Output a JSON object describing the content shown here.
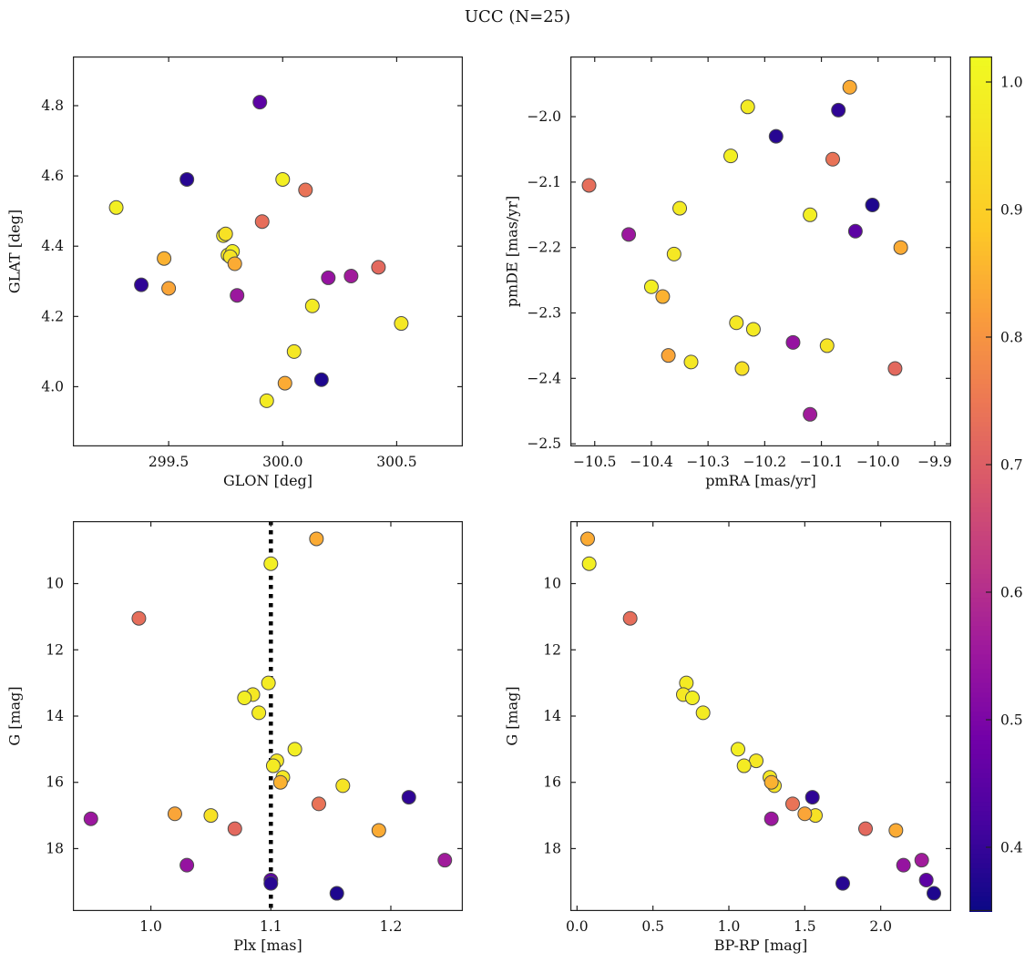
{
  "chart_data": {
    "type": "scatter",
    "title": "UCC (N=25)",
    "n_points": 25,
    "colormap": "plasma",
    "color_key": "prob",
    "marker": {
      "radius": 7.5,
      "edge_color": "#4d4d4d"
    },
    "colorbar": {
      "vmin": 0.35,
      "vmax": 1.02,
      "ticks": [
        0.4,
        0.5,
        0.6,
        0.7,
        0.8,
        0.9,
        1.0
      ]
    },
    "panels": [
      {
        "x_key": "glon",
        "y_key": "glat",
        "xlabel": "GLON [deg]",
        "ylabel": "GLAT [deg]",
        "xlim": [
          299.08,
          300.79
        ],
        "ylim": [
          3.83,
          4.94
        ],
        "invert_y": false,
        "xticks": [
          299.5,
          300.0,
          300.5
        ],
        "yticks": [
          4.0,
          4.2,
          4.4,
          4.6,
          4.8
        ],
        "x_decimals": 1,
        "y_decimals": 1
      },
      {
        "x_key": "pmra",
        "y_key": "pmde",
        "xlabel": "pmRA [mas/yr]",
        "ylabel": "pmDE [mas/yr]",
        "xlim": [
          -10.543,
          -9.871
        ],
        "ylim": [
          -2.504,
          -1.908
        ],
        "invert_y": false,
        "xticks": [
          -10.5,
          -10.4,
          -10.3,
          -10.2,
          -10.1,
          -10.0,
          -9.9
        ],
        "yticks": [
          -2.5,
          -2.4,
          -2.3,
          -2.2,
          -2.1,
          -2.0
        ],
        "x_decimals": 1,
        "y_decimals": 1
      },
      {
        "x_key": "plx",
        "y_key": "g",
        "xlabel": "Plx [mas]",
        "ylabel": "G [mag]",
        "xlim": [
          0.935,
          1.26
        ],
        "ylim": [
          8.115,
          19.885
        ],
        "invert_y": true,
        "xticks": [
          1.0,
          1.1,
          1.2
        ],
        "yticks": [
          10,
          12,
          14,
          16,
          18
        ],
        "x_decimals": 1,
        "y_decimals": 0,
        "vline": {
          "x": 1.1,
          "style": "dotted",
          "color": "#000000",
          "width": 4.5
        }
      },
      {
        "x_key": "bprp",
        "y_key": "g",
        "xlabel": "BP-RP [mag]",
        "ylabel": "G [mag]",
        "xlim": [
          -0.044,
          2.464
        ],
        "ylim": [
          8.115,
          19.885
        ],
        "invert_y": true,
        "xticks": [
          0.0,
          0.5,
          1.0,
          1.5,
          2.0
        ],
        "yticks": [
          10,
          12,
          14,
          16,
          18
        ],
        "x_decimals": 1,
        "y_decimals": 0
      }
    ],
    "stars": [
      {
        "glon": 299.27,
        "glat": 4.51,
        "pmra": -10.26,
        "pmde": -2.06,
        "plx": 1.1,
        "g": 9.4,
        "bprp": 0.08,
        "prob": 0.99
      },
      {
        "glon": 299.74,
        "glat": 4.43,
        "pmra": -10.35,
        "pmde": -2.14,
        "plx": 1.098,
        "g": 13.0,
        "bprp": 0.72,
        "prob": 0.98
      },
      {
        "glon": 299.76,
        "glat": 4.375,
        "pmra": -10.36,
        "pmde": -2.21,
        "plx": 1.085,
        "g": 13.35,
        "bprp": 0.7,
        "prob": 0.97
      },
      {
        "glon": 299.78,
        "glat": 4.385,
        "pmra": -10.4,
        "pmde": -2.26,
        "plx": 1.078,
        "g": 13.45,
        "bprp": 0.76,
        "prob": 0.99
      },
      {
        "glon": 299.93,
        "glat": 3.96,
        "pmra": -10.23,
        "pmde": -1.985,
        "plx": 1.09,
        "g": 13.9,
        "bprp": 0.83,
        "prob": 0.98
      },
      {
        "glon": 300.0,
        "glat": 4.59,
        "pmra": -10.12,
        "pmde": -2.15,
        "plx": 1.12,
        "g": 15.0,
        "bprp": 1.06,
        "prob": 0.99
      },
      {
        "glon": 300.05,
        "glat": 4.1,
        "pmra": -10.25,
        "pmde": -2.315,
        "plx": 1.105,
        "g": 15.35,
        "bprp": 1.18,
        "prob": 0.97
      },
      {
        "glon": 300.13,
        "glat": 4.23,
        "pmra": -10.22,
        "pmde": -2.325,
        "plx": 1.102,
        "g": 15.5,
        "bprp": 1.1,
        "prob": 0.98
      },
      {
        "glon": 300.52,
        "glat": 4.18,
        "pmra": -10.33,
        "pmde": -2.375,
        "plx": 1.11,
        "g": 15.85,
        "bprp": 1.27,
        "prob": 0.97
      },
      {
        "glon": 299.77,
        "glat": 4.37,
        "pmra": -10.09,
        "pmde": -2.35,
        "plx": 1.16,
        "g": 16.1,
        "bprp": 1.3,
        "prob": 0.96
      },
      {
        "glon": 299.75,
        "glat": 4.435,
        "pmra": -10.24,
        "pmde": -2.385,
        "plx": 1.05,
        "g": 17.0,
        "bprp": 1.57,
        "prob": 0.95
      },
      {
        "glon": 300.01,
        "glat": 4.01,
        "pmra": -10.05,
        "pmde": -1.955,
        "plx": 1.138,
        "g": 8.65,
        "bprp": 0.07,
        "prob": 0.84
      },
      {
        "glon": 299.48,
        "glat": 4.365,
        "pmra": -10.38,
        "pmde": -2.275,
        "plx": 1.108,
        "g": 16.0,
        "bprp": 1.28,
        "prob": 0.85
      },
      {
        "glon": 299.5,
        "glat": 4.28,
        "pmra": -10.37,
        "pmde": -2.365,
        "plx": 1.02,
        "g": 16.95,
        "bprp": 1.5,
        "prob": 0.83
      },
      {
        "glon": 299.79,
        "glat": 4.35,
        "pmra": -9.96,
        "pmde": -2.2,
        "plx": 1.19,
        "g": 17.45,
        "bprp": 2.1,
        "prob": 0.84
      },
      {
        "glon": 299.91,
        "glat": 4.47,
        "pmra": -10.51,
        "pmde": -2.105,
        "plx": 0.99,
        "g": 11.05,
        "bprp": 0.35,
        "prob": 0.73
      },
      {
        "glon": 300.1,
        "glat": 4.56,
        "pmra": -10.08,
        "pmde": -2.065,
        "plx": 1.14,
        "g": 16.65,
        "bprp": 1.42,
        "prob": 0.74
      },
      {
        "glon": 300.42,
        "glat": 4.34,
        "pmra": -9.97,
        "pmde": -2.385,
        "plx": 1.07,
        "g": 17.4,
        "bprp": 1.9,
        "prob": 0.72
      },
      {
        "glon": 299.8,
        "glat": 4.26,
        "pmra": -10.44,
        "pmde": -2.18,
        "plx": 0.95,
        "g": 17.1,
        "bprp": 1.28,
        "prob": 0.55
      },
      {
        "glon": 300.2,
        "glat": 4.31,
        "pmra": -10.15,
        "pmde": -2.345,
        "plx": 1.03,
        "g": 18.5,
        "bprp": 2.15,
        "prob": 0.54
      },
      {
        "glon": 300.3,
        "glat": 4.315,
        "pmra": -10.12,
        "pmde": -2.455,
        "plx": 1.245,
        "g": 18.35,
        "bprp": 2.27,
        "prob": 0.56
      },
      {
        "glon": 299.9,
        "glat": 4.81,
        "pmra": -10.04,
        "pmde": -2.175,
        "plx": 1.1,
        "g": 18.95,
        "bprp": 2.3,
        "prob": 0.45
      },
      {
        "glon": 299.38,
        "glat": 4.29,
        "pmra": -10.07,
        "pmde": -1.99,
        "plx": 1.215,
        "g": 16.45,
        "bprp": 1.55,
        "prob": 0.39
      },
      {
        "glon": 299.58,
        "glat": 4.59,
        "pmra": -10.18,
        "pmde": -2.03,
        "plx": 1.1,
        "g": 19.05,
        "bprp": 1.75,
        "prob": 0.38
      },
      {
        "glon": 300.17,
        "glat": 4.02,
        "pmra": -10.01,
        "pmde": -2.135,
        "plx": 1.155,
        "g": 19.35,
        "bprp": 2.35,
        "prob": 0.37
      }
    ]
  }
}
